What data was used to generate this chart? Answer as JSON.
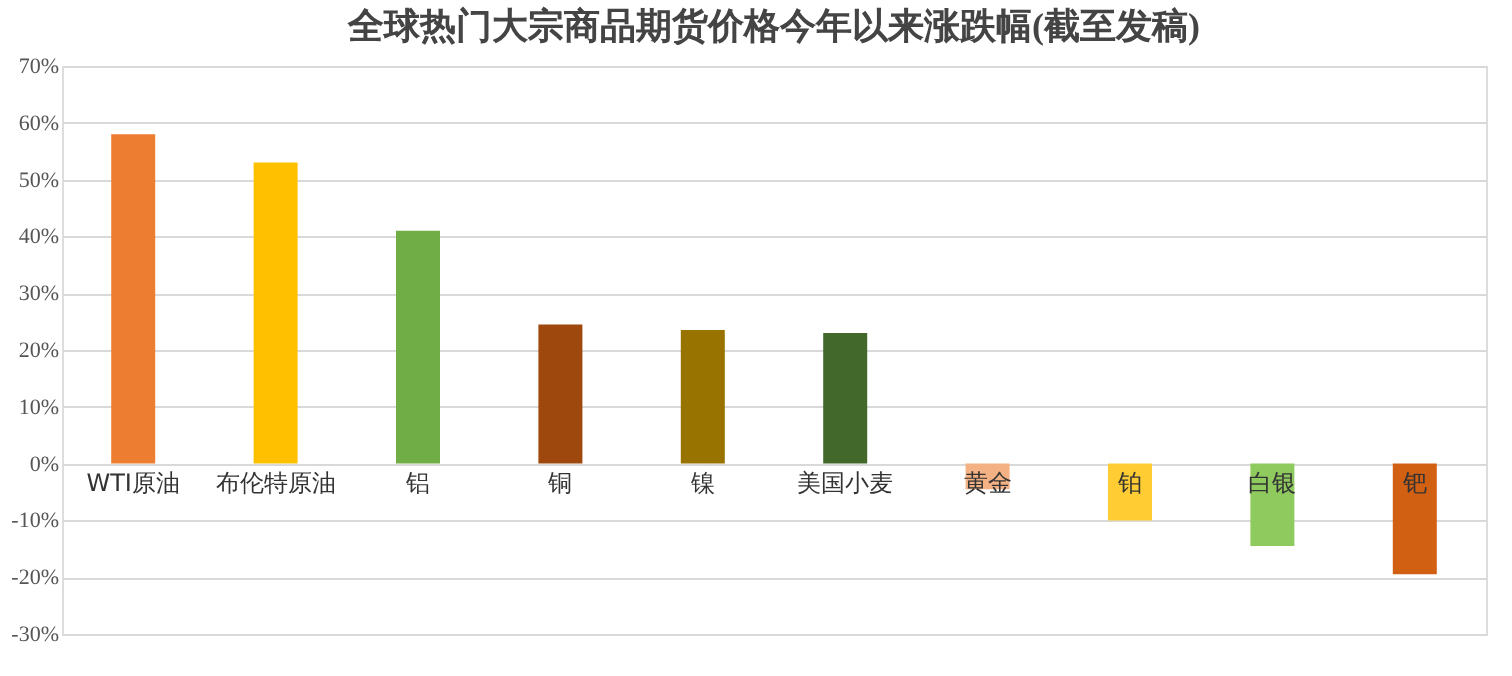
{
  "chart_data": {
    "type": "bar",
    "title": "全球热门大宗商品期货价格今年以来涨跌幅(截至发稿)",
    "categories": [
      "WTI原油",
      "布伦特原油",
      "铝",
      "铜",
      "镍",
      "美国小麦",
      "黄金",
      "铂",
      "白银",
      "钯"
    ],
    "values": [
      58,
      53,
      41,
      24.5,
      23.5,
      23,
      -4.5,
      -10,
      -14.5,
      -19.5
    ],
    "colors": [
      "#ed7d31",
      "#ffc000",
      "#70ad47",
      "#9e480e",
      "#997300",
      "#43682b",
      "#f4b183",
      "#ffcd33",
      "#8fca5f",
      "#d26012"
    ],
    "ylim": [
      -30,
      70
    ],
    "yticks": [
      {
        "value": -30,
        "label": "-30%"
      },
      {
        "value": -20,
        "label": "-20%"
      },
      {
        "value": -10,
        "label": "-10%"
      },
      {
        "value": 0,
        "label": "0%"
      },
      {
        "value": 10,
        "label": "10%"
      },
      {
        "value": 20,
        "label": "20%"
      },
      {
        "value": 30,
        "label": "30%"
      },
      {
        "value": 40,
        "label": "40%"
      },
      {
        "value": 50,
        "label": "50%"
      },
      {
        "value": 60,
        "label": "60%"
      },
      {
        "value": 70,
        "label": "70%"
      }
    ],
    "grid": "y",
    "legend": false
  }
}
